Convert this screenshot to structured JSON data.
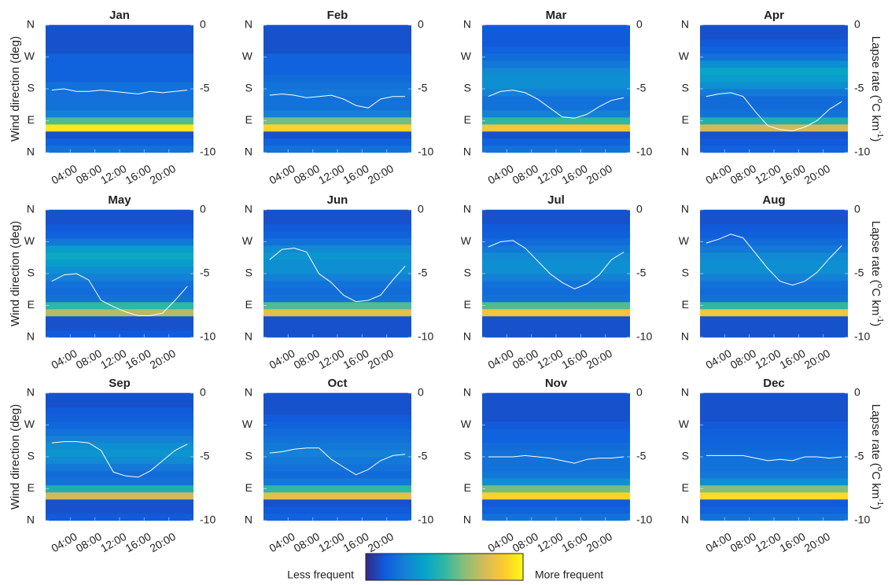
{
  "shared": {
    "y_label": "Wind direction (deg)",
    "y2_label_parts": [
      "Lapse rate (",
      "o",
      "C km",
      "-1",
      ")"
    ],
    "xlim": [
      0,
      24
    ],
    "xticks": [
      {
        "value": 4,
        "label": "04:00"
      },
      {
        "value": 8,
        "label": "08:00"
      },
      {
        "value": 12,
        "label": "12:00"
      },
      {
        "value": 16,
        "label": "16:00"
      },
      {
        "value": 20,
        "label": "20:00"
      }
    ],
    "ylim": [
      0,
      360
    ],
    "yticks": [
      {
        "value": 0,
        "label": "N"
      },
      {
        "value": 90,
        "label": "E"
      },
      {
        "value": 180,
        "label": "S"
      },
      {
        "value": 270,
        "label": "W"
      },
      {
        "value": 360,
        "label": "N"
      }
    ],
    "y2lim": [
      -10,
      0
    ],
    "y2ticks": [
      -10,
      -5,
      0
    ],
    "x": [
      1,
      3,
      5,
      7,
      9,
      11,
      13,
      15,
      17,
      19,
      21,
      23
    ],
    "bins": [
      0,
      20,
      40,
      60,
      80,
      100,
      120,
      140,
      160,
      180,
      200,
      220,
      240,
      260,
      280,
      300,
      320,
      340,
      360
    ],
    "colormap": [
      "#352a87",
      "#0f5cdd",
      "#1481d6",
      "#06a4ca",
      "#2eb7a4",
      "#87bf77",
      "#d1bb59",
      "#fec832",
      "#f9fb0e"
    ],
    "colorbar_low": "Less frequent",
    "colorbar_high": "More frequent"
  },
  "chart_data": [
    {
      "type": "heatmap",
      "title": "Jan",
      "heatmap": [
        0.2,
        0.15,
        0.1,
        0.95,
        0.55,
        0.25,
        0.2,
        0.2,
        0.2,
        0.2,
        0.15,
        0.15,
        0.15,
        0.15,
        0.1,
        0.1,
        0.1,
        0.1
      ],
      "series": [
        {
          "color": "#ffffff",
          "axis": "y2",
          "values": [
            -5.1,
            -5.0,
            -5.2,
            -5.2,
            -5.1,
            -5.2,
            -5.3,
            -5.4,
            -5.2,
            -5.3,
            -5.2,
            -5.1
          ]
        }
      ]
    },
    {
      "type": "heatmap",
      "title": "Feb",
      "heatmap": [
        0.2,
        0.15,
        0.1,
        0.9,
        0.6,
        0.25,
        0.2,
        0.2,
        0.22,
        0.2,
        0.18,
        0.15,
        0.15,
        0.15,
        0.1,
        0.1,
        0.1,
        0.1
      ],
      "series": [
        {
          "color": "#ffffff",
          "axis": "y2",
          "values": [
            -5.5,
            -5.4,
            -5.5,
            -5.7,
            -5.6,
            -5.5,
            -5.8,
            -6.3,
            -6.5,
            -5.8,
            -5.6,
            -5.6
          ]
        }
      ]
    },
    {
      "type": "heatmap",
      "title": "Mar",
      "heatmap": [
        0.2,
        0.15,
        0.1,
        0.85,
        0.5,
        0.25,
        0.2,
        0.2,
        0.25,
        0.3,
        0.3,
        0.28,
        0.22,
        0.18,
        0.15,
        0.12,
        0.12,
        0.12
      ],
      "series": [
        {
          "color": "#ffffff",
          "axis": "y2",
          "values": [
            -5.6,
            -5.2,
            -5.1,
            -5.3,
            -5.8,
            -6.5,
            -7.2,
            -7.3,
            -7.0,
            -6.4,
            -5.9,
            -5.7
          ]
        }
      ]
    },
    {
      "type": "heatmap",
      "title": "Apr",
      "heatmap": [
        0.15,
        0.12,
        0.1,
        0.75,
        0.45,
        0.2,
        0.18,
        0.18,
        0.22,
        0.3,
        0.35,
        0.38,
        0.3,
        0.2,
        0.15,
        0.12,
        0.1,
        0.1
      ],
      "series": [
        {
          "color": "#ffffff",
          "axis": "y2",
          "values": [
            -5.6,
            -5.4,
            -5.3,
            -5.6,
            -6.8,
            -7.9,
            -8.2,
            -8.3,
            -8.0,
            -7.5,
            -6.6,
            -6.0
          ]
        }
      ]
    },
    {
      "type": "heatmap",
      "title": "May",
      "heatmap": [
        0.12,
        0.1,
        0.1,
        0.7,
        0.5,
        0.2,
        0.18,
        0.2,
        0.25,
        0.3,
        0.35,
        0.4,
        0.35,
        0.22,
        0.15,
        0.12,
        0.1,
        0.1
      ],
      "series": [
        {
          "color": "#ffffff",
          "axis": "y2",
          "values": [
            -5.6,
            -5.1,
            -5.0,
            -5.5,
            -7.1,
            -7.6,
            -8.0,
            -8.3,
            -8.3,
            -8.1,
            -7.1,
            -6.0
          ]
        }
      ]
    },
    {
      "type": "heatmap",
      "title": "Jun",
      "heatmap": [
        0.1,
        0.1,
        0.1,
        0.8,
        0.55,
        0.2,
        0.18,
        0.2,
        0.25,
        0.3,
        0.3,
        0.32,
        0.28,
        0.2,
        0.15,
        0.12,
        0.1,
        0.1
      ],
      "series": [
        {
          "color": "#ffffff",
          "axis": "y2",
          "values": [
            -3.9,
            -3.1,
            -3.0,
            -3.3,
            -5.0,
            -5.7,
            -6.7,
            -7.2,
            -7.1,
            -6.7,
            -5.5,
            -4.4
          ]
        }
      ]
    },
    {
      "type": "heatmap",
      "title": "Jul",
      "heatmap": [
        0.1,
        0.1,
        0.1,
        0.85,
        0.55,
        0.2,
        0.18,
        0.2,
        0.25,
        0.3,
        0.3,
        0.28,
        0.22,
        0.18,
        0.14,
        0.12,
        0.1,
        0.1
      ],
      "series": [
        {
          "color": "#ffffff",
          "axis": "y2",
          "values": [
            -2.9,
            -2.5,
            -2.4,
            -3.0,
            -4.0,
            -5.0,
            -5.7,
            -6.2,
            -5.8,
            -5.1,
            -3.9,
            -3.3
          ]
        }
      ]
    },
    {
      "type": "heatmap",
      "title": "Aug",
      "heatmap": [
        0.1,
        0.1,
        0.1,
        0.85,
        0.5,
        0.2,
        0.18,
        0.2,
        0.25,
        0.3,
        0.3,
        0.28,
        0.22,
        0.18,
        0.14,
        0.12,
        0.1,
        0.1
      ],
      "series": [
        {
          "color": "#ffffff",
          "axis": "y2",
          "values": [
            -2.6,
            -2.3,
            -1.9,
            -2.2,
            -3.4,
            -4.6,
            -5.6,
            -5.9,
            -5.6,
            -4.9,
            -3.8,
            -2.8
          ]
        }
      ]
    },
    {
      "type": "heatmap",
      "title": "Sep",
      "heatmap": [
        0.12,
        0.1,
        0.1,
        0.75,
        0.45,
        0.2,
        0.18,
        0.22,
        0.28,
        0.32,
        0.3,
        0.25,
        0.2,
        0.16,
        0.14,
        0.12,
        0.1,
        0.1
      ],
      "series": [
        {
          "color": "#ffffff",
          "axis": "y2",
          "values": [
            -3.9,
            -3.8,
            -3.8,
            -3.9,
            -4.5,
            -6.2,
            -6.5,
            -6.6,
            -6.1,
            -5.3,
            -4.5,
            -4.0
          ]
        }
      ]
    },
    {
      "type": "heatmap",
      "title": "Oct",
      "heatmap": [
        0.15,
        0.12,
        0.1,
        0.8,
        0.5,
        0.22,
        0.18,
        0.2,
        0.22,
        0.25,
        0.22,
        0.2,
        0.18,
        0.15,
        0.12,
        0.1,
        0.1,
        0.1
      ],
      "series": [
        {
          "color": "#ffffff",
          "axis": "y2",
          "values": [
            -4.7,
            -4.6,
            -4.4,
            -4.3,
            -4.3,
            -5.2,
            -5.8,
            -6.4,
            -6.0,
            -5.3,
            -4.9,
            -4.8
          ]
        }
      ]
    },
    {
      "type": "heatmap",
      "title": "Nov",
      "heatmap": [
        0.2,
        0.15,
        0.12,
        0.9,
        0.6,
        0.3,
        0.22,
        0.2,
        0.2,
        0.2,
        0.18,
        0.15,
        0.15,
        0.12,
        0.1,
        0.1,
        0.1,
        0.1
      ],
      "series": [
        {
          "color": "#ffffff",
          "axis": "y2",
          "values": [
            -5.0,
            -5.0,
            -5.0,
            -4.9,
            -5.0,
            -5.1,
            -5.3,
            -5.5,
            -5.2,
            -5.1,
            -5.1,
            -5.0
          ]
        }
      ]
    },
    {
      "type": "heatmap",
      "title": "Dec",
      "heatmap": [
        0.2,
        0.15,
        0.12,
        0.92,
        0.62,
        0.3,
        0.22,
        0.2,
        0.2,
        0.18,
        0.16,
        0.15,
        0.14,
        0.12,
        0.1,
        0.1,
        0.1,
        0.1
      ],
      "series": [
        {
          "color": "#ffffff",
          "axis": "y2",
          "values": [
            -4.9,
            -4.9,
            -4.9,
            -4.9,
            -5.1,
            -5.3,
            -5.2,
            -5.3,
            -5.0,
            -5.0,
            -5.1,
            -5.0
          ]
        }
      ]
    }
  ]
}
